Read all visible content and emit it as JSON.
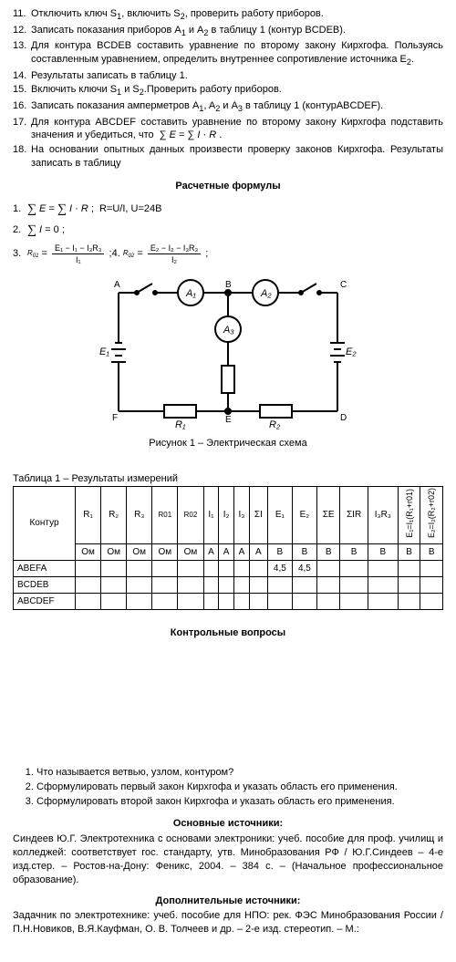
{
  "steps": [
    {
      "n": "11.",
      "t": "Отключить ключ S<sub>1</sub>, включить S<sub>2</sub>, проверить работу приборов."
    },
    {
      "n": "12.",
      "t": "Записать показания приборов A<sub>1</sub> и A<sub>2</sub> в таблицу 1 (контур BCDEB)."
    },
    {
      "n": "13.",
      "t": "Для контура BCDEB составить уравнение по второму закону Кирхгофа. Пользуясь составленным уравнением, определить внутреннее сопротивление источника E<sub>2</sub>."
    },
    {
      "n": "14.",
      "t": "Результаты записать в таблицу 1."
    },
    {
      "n": "15.",
      "t": "Включить ключи S<sub>1</sub> и S<sub>2</sub>.Проверить работу приборов."
    },
    {
      "n": "16.",
      "t": "Записать показания амперметров A<sub>1</sub>, A<sub>2</sub> и A<sub>3</sub> в таблицу 1 (контурABCDEF)."
    },
    {
      "n": "17.",
      "t": "Для контура ABCDEF составить уравнение по второму закону Кирхгофа подставить значения и убедиться, что &nbsp;∑ <i>E</i> = ∑ <i>I · R</i> ."
    },
    {
      "n": "18.",
      "t": "На основании опытных данных произвести проверку законов Кирхгофа. Результаты записать в таблицу"
    }
  ],
  "heading_formulas": "Расчетные формулы",
  "formula1_label": "1.",
  "formula1_text_a": "∑ E = ∑ I · R ;  R=U/I, U=24В",
  "formula2_label": "2.",
  "formula2_text": "∑ I = 0 ;",
  "formula3_label": "3.",
  "formula4_label": "4.",
  "f3_top": "E₁ − I₁ − I₃R₃",
  "f3_bot": "I₁",
  "f3_lhs": "R₀₁ =",
  "f4_top": "E₂ − I₂ − I₃R₃",
  "f4_bot": "I₂",
  "f4_lhs": "R₀₂ =",
  "diagram": {
    "labels": {
      "A1": "A₁",
      "A2": "A₂",
      "A3": "A₃",
      "E1": "E₁",
      "E2": "E₂",
      "R1": "R₁",
      "R2": "R₂",
      "A": "A",
      "B": "B",
      "C": "C",
      "D": "D",
      "E": "E",
      "F": "F"
    },
    "stroke": "#000000",
    "stroke_width": 2,
    "bg": "#ffffff"
  },
  "caption_figure": "Рисунок 1 – Электрическая схема",
  "table_caption": "Таблица 1 – Результаты измерений",
  "table": {
    "row_header": "Контур",
    "cols": [
      "R₁",
      "R₂",
      "R₃",
      "R01",
      "R02",
      "I₁",
      "I₂",
      "I₃",
      "ΣI",
      "E₁",
      "E₂",
      "ΣE",
      "ΣIR",
      "I₃R₃"
    ],
    "vcol1": "E₁=I₁(R₁+r01)",
    "vcol2": "E₂=I₂(R₂+r02)",
    "units": [
      "Ом",
      "Ом",
      "Ом",
      "Ом",
      "Ом",
      "А",
      "А",
      "А",
      "А",
      "В",
      "В",
      "В",
      "В",
      "В",
      "В",
      "В"
    ],
    "rows": [
      "ABEFA",
      "BCDEB",
      "ABCDEF"
    ],
    "filled": {
      "r": 0,
      "c1": 9,
      "v1": "4,5",
      "c2": 10,
      "v2": "4,5"
    }
  },
  "heading_questions": "Контрольные вопросы",
  "questions": [
    "Что называется ветвью, узлом, контуром?",
    "Сформулировать первый закон Кирхгофа и указать область его применения.",
    "Сформулировать второй закон Кирхгофа и указать область его применения."
  ],
  "src_main_head": "Основные источники:",
  "src_main_text": "Синдеев Ю.Г. Электротехника с основами электроники: учеб. пособие для проф. училищ и колледжей: соответствует гос. стандарту, утв. Минобразования РФ / Ю.Г.Синдеев – 4-е изд.стер. – Ростов-на-Дону: Феникс, 2004. – 384 с. – (Начальное профессиональное образование).",
  "src_add_head": "Дополнительные источники:",
  "src_add_text": "Задачник по электротехнике: учеб. пособие для НПО: рек. ФЭС Минобразования России / П.Н.Новиков, В.Я.Кауфман, О. В. Толчеев и др. – 2-е изд. стереотип. – М.:"
}
